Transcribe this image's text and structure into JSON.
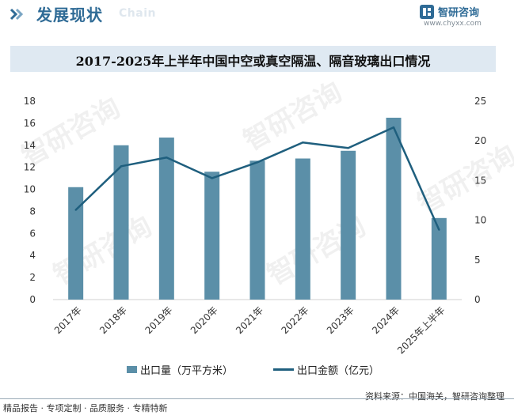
{
  "header": {
    "title": "发展现状",
    "subtitle": "Chain",
    "brand_name": "智研咨询",
    "brand_url": "www.chyxx.com",
    "icon": "double-chevron-icon"
  },
  "chart_data": {
    "type": "bar+line",
    "title": "2017-2025年上半年中国中空或真空隔温、隔音玻璃出口情况",
    "categories": [
      "2017年",
      "2018年",
      "2019年",
      "2020年",
      "2021年",
      "2022年",
      "2023年",
      "2024年",
      "2025年上半年"
    ],
    "series": [
      {
        "name": "出口量（万平方米）",
        "type": "bar",
        "axis": "left",
        "color": "#5b8fa8",
        "values": [
          10.2,
          14.0,
          14.7,
          11.6,
          12.6,
          12.8,
          13.5,
          16.5,
          7.4
        ]
      },
      {
        "name": "出口金额（亿元）",
        "type": "line",
        "axis": "right",
        "color": "#1f5f7e",
        "values": [
          11.3,
          16.8,
          17.9,
          15.3,
          17.3,
          19.8,
          19.1,
          21.7,
          8.8
        ]
      }
    ],
    "y_left": {
      "min": 0,
      "max": 18,
      "ticks": [
        0,
        2,
        4,
        6,
        8,
        10,
        12,
        14,
        16,
        18
      ]
    },
    "y_right": {
      "min": 0,
      "max": 25,
      "ticks": [
        0,
        5,
        10,
        15,
        20,
        25
      ]
    },
    "legend_position": "bottom",
    "grid": false
  },
  "watermark_text": "智研咨询",
  "footer": {
    "left": "精品报告 · 专项定制 · 品质服务 · 专精特新",
    "source": "资料来源：中国海关，智研咨询整理"
  }
}
